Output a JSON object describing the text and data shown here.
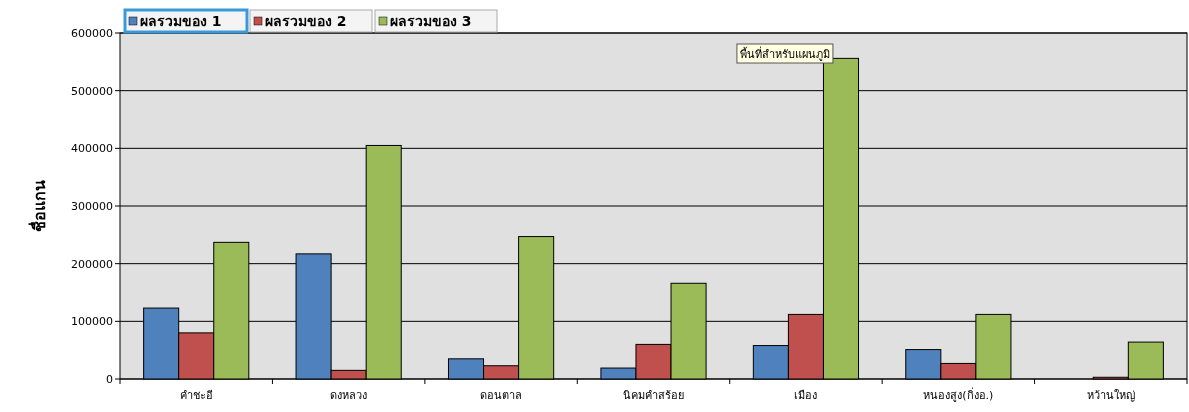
{
  "chart_data": {
    "type": "bar",
    "ylabel": "ชื่อแกน",
    "categories": [
      "คำชะอี",
      "ดงหลวง",
      "ดอนตาล",
      "นิคมคำสร้อย",
      "เมือง",
      "หนองสูง(กิ่งอ.)",
      "หว้านใหญ่"
    ],
    "series": [
      {
        "name": "ผลรวมของ 1",
        "color": "#4f81bd",
        "values": [
          123000,
          217000,
          35000,
          19000,
          58000,
          51000,
          null
        ]
      },
      {
        "name": "ผลรวมของ 2",
        "color": "#c0504d",
        "values": [
          80000,
          15000,
          23000,
          60000,
          112000,
          27000,
          3000
        ]
      },
      {
        "name": "ผลรวมของ 3",
        "color": "#9bbb59",
        "values": [
          237000,
          405000,
          247000,
          166000,
          556000,
          112000,
          64000
        ]
      }
    ],
    "ylim": [
      0,
      600000
    ],
    "yticks": [
      0,
      100000,
      200000,
      300000,
      400000,
      500000,
      600000
    ],
    "grid": "y",
    "legend": "top left",
    "annotations": [
      "พื้นที่สำหรับแผนภูมิ"
    ]
  }
}
